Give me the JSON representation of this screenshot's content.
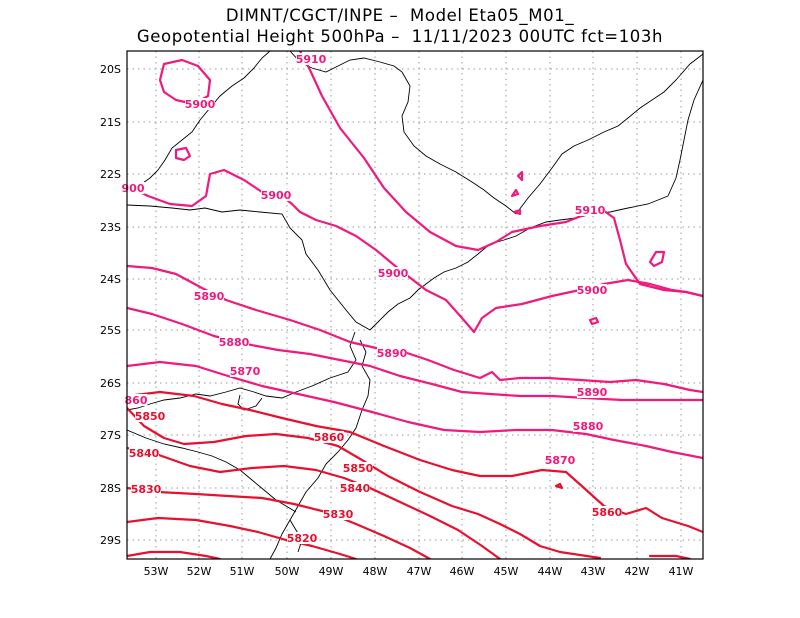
{
  "title": {
    "line1": "DIMNT/CGCT/INPE –  Model Eta05_M01_",
    "line2": "Geopotential Height 500hPa –  11/11/2023 00UTC fct=103h"
  },
  "colors": {
    "pink": "#f0197d",
    "red": "#e8102f",
    "coast": "#000000",
    "grid": "#9a9a9a"
  },
  "axes": {
    "y_ticks": [
      "20S",
      "21S",
      "22S",
      "23S",
      "24S",
      "25S",
      "26S",
      "27S",
      "28S",
      "29S"
    ],
    "x_ticks": [
      "53W",
      "52W",
      "51W",
      "50W",
      "49W",
      "48W",
      "47W",
      "46W",
      "45W",
      "44W",
      "43W",
      "42W",
      "41W"
    ]
  },
  "contour_labels": [
    "5910",
    "5900",
    "5900",
    "900",
    "5910",
    "5900",
    "5890",
    "5900",
    "5890",
    "5880",
    "5890",
    "5870",
    "860",
    "5850",
    "5880",
    "5860",
    "5840",
    "5870",
    "5850",
    "5830",
    "5840",
    "5860",
    "5830",
    "5820"
  ]
}
